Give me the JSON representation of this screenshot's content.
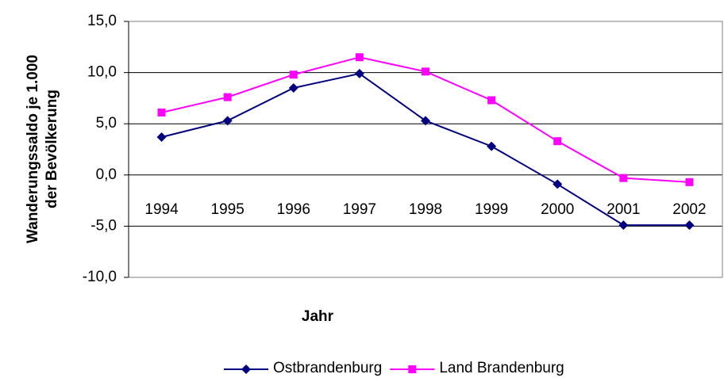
{
  "chart_data": {
    "type": "line",
    "ylabel": [
      "Wanderungssaldo je 1.000",
      "der Bevölkerung"
    ],
    "xlabel": "Jahr",
    "categories": [
      "1994",
      "1995",
      "1996",
      "1997",
      "1998",
      "1999",
      "2000",
      "2001",
      "2002"
    ],
    "series": [
      {
        "name": "Ostbrandenburg",
        "color": "#000080",
        "marker": "diamond",
        "values": [
          3.7,
          5.3,
          8.5,
          9.9,
          5.3,
          2.8,
          -0.9,
          -4.9,
          -4.9
        ]
      },
      {
        "name": "Land Brandenburg",
        "color": "#ff00ff",
        "marker": "square",
        "values": [
          6.1,
          7.6,
          9.8,
          11.5,
          10.1,
          7.3,
          3.3,
          -0.3,
          -0.7
        ]
      }
    ],
    "ylim": [
      -10,
      15
    ],
    "yticks": [
      {
        "value": -10,
        "label": "-10,0"
      },
      {
        "value": -5,
        "label": "-5,0"
      },
      {
        "value": 0,
        "label": "0,0"
      },
      {
        "value": 5,
        "label": "5,0"
      },
      {
        "value": 10,
        "label": "10,0"
      },
      {
        "value": 15,
        "label": "15,0"
      }
    ],
    "grid": true,
    "legend": "bottom"
  }
}
